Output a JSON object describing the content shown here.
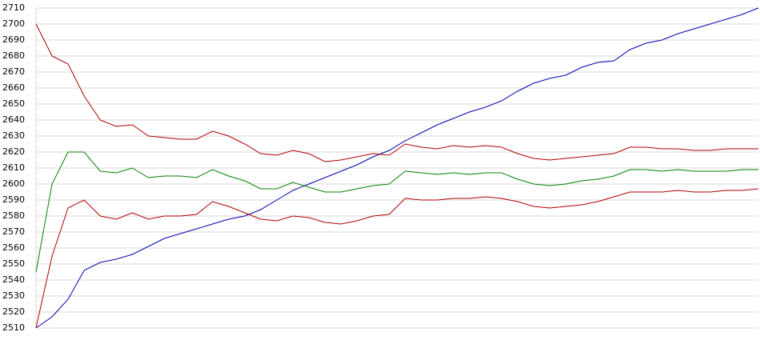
{
  "chart_data": {
    "type": "line",
    "categories": [
      null,
      null,
      null,
      null,
      null,
      null,
      null,
      null,
      null,
      null,
      null,
      null,
      null,
      null,
      null,
      null,
      null,
      null,
      null,
      null,
      null,
      null,
      null,
      null,
      null,
      null,
      null,
      null,
      null,
      null,
      null,
      null,
      null,
      null,
      null,
      null,
      null,
      null,
      null,
      null,
      null,
      null,
      null,
      null,
      null,
      null
    ],
    "series": [
      {
        "color": "#0000b0",
        "values": [
          2510,
          2517,
          2528,
          2546,
          2551,
          2553,
          2556,
          2561,
          2566,
          2569,
          2572,
          2575,
          2578,
          2580,
          2584,
          2590,
          2596,
          2600,
          2604,
          2608,
          2612,
          2617,
          2621,
          2627,
          2632,
          2637,
          2641,
          2645,
          2648,
          2652,
          2658,
          2663,
          2666,
          2668,
          2673,
          2676,
          2677,
          2684,
          2688,
          2690,
          2694,
          2697,
          2700,
          2703,
          2706,
          2710
        ]
      },
      {
        "color": "#b00000",
        "values": [
          2700,
          2680,
          2675,
          2655,
          2640,
          2636,
          2637,
          2630,
          2629,
          2628,
          2628,
          2633,
          2630,
          2625,
          2619,
          2618,
          2621,
          2619,
          2614,
          2615,
          2617,
          2619,
          2618,
          2625,
          2623,
          2622,
          2624,
          2623,
          2624,
          2623,
          2619,
          2616,
          2615,
          2616,
          2617,
          2618,
          2619,
          2623,
          2623,
          2622,
          2622,
          2621,
          2621,
          2622,
          2622,
          2622
        ]
      },
      {
        "color": "#008000",
        "values": [
          2545,
          2600,
          2620,
          2620,
          2608,
          2607,
          2610,
          2604,
          2605,
          2605,
          2604,
          2609,
          2605,
          2602,
          2597,
          2597,
          2601,
          2598,
          2595,
          2595,
          2597,
          2599,
          2600,
          2608,
          2607,
          2606,
          2607,
          2606,
          2607,
          2607,
          2603,
          2600,
          2599,
          2600,
          2602,
          2603,
          2605,
          2609,
          2609,
          2608,
          2609,
          2608,
          2608,
          2608,
          2609,
          2609
        ]
      },
      {
        "color": "#b00000",
        "values": [
          2510,
          2555,
          2585,
          2590,
          2580,
          2578,
          2582,
          2578,
          2580,
          2580,
          2581,
          2589,
          2586,
          2582,
          2578,
          2577,
          2580,
          2579,
          2576,
          2575,
          2577,
          2580,
          2581,
          2591,
          2590,
          2590,
          2591,
          2591,
          2592,
          2591,
          2589,
          2586,
          2585,
          2586,
          2587,
          2589,
          2592,
          2595,
          2595,
          2595,
          2596,
          2595,
          2595,
          2596,
          2596,
          2597
        ]
      }
    ],
    "ylim": [
      2510,
      2710
    ],
    "yticks": [
      2510,
      2520,
      2530,
      2540,
      2550,
      2560,
      2570,
      2580,
      2590,
      2600,
      2610,
      2620,
      2630,
      2640,
      2650,
      2660,
      2670,
      2680,
      2690,
      2700,
      2710
    ],
    "grid": true
  }
}
